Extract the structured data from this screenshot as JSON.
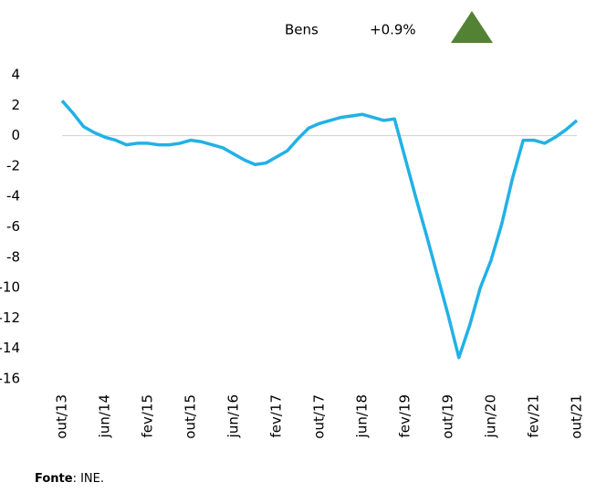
{
  "chart_data": {
    "type": "line",
    "legend_label": "Bens",
    "change": "+0.9%",
    "change_color": "#548235",
    "source_label": "Fonte",
    "source": ": INE.",
    "categories": [
      "out/13",
      null,
      null,
      null,
      "jun/14",
      null,
      null,
      null,
      "fev/15",
      null,
      null,
      null,
      "out/15",
      null,
      null,
      null,
      "jun/16",
      null,
      null,
      null,
      "fev/17",
      null,
      null,
      null,
      "out/17",
      null,
      null,
      null,
      "jun/18",
      null,
      null,
      null,
      "fev/19",
      null,
      null,
      null,
      "out/19",
      null,
      null,
      null,
      "jun/20",
      null,
      null,
      null,
      "fev/21",
      null,
      null,
      null,
      "out/21"
    ],
    "series": [
      {
        "name": "Bens",
        "color": "#21b1e6",
        "values": [
          2.3,
          1.5,
          0.6,
          0.2,
          -0.1,
          -0.3,
          -0.6,
          -0.5,
          -0.5,
          -0.6,
          -0.6,
          -0.5,
          -0.3,
          -0.4,
          -0.6,
          -0.8,
          -1.2,
          -1.6,
          -1.9,
          -1.8,
          -1.4,
          -1.0,
          -0.2,
          0.5,
          0.8,
          1.0,
          1.2,
          1.3,
          1.4,
          1.2,
          1.0,
          1.1,
          -1.5,
          -4.1,
          -6.6,
          -9.2,
          -11.8,
          -14.6,
          -12.5,
          -10.0,
          -8.2,
          -5.8,
          -2.8,
          -0.3,
          -0.3,
          -0.5,
          -0.1,
          0.4,
          1.0
        ]
      }
    ],
    "ylim": [
      -16,
      4
    ],
    "yticks": [
      -16,
      -14,
      -12,
      -10,
      -8,
      -6,
      -4,
      -2,
      0,
      2,
      4
    ],
    "zero_line": true
  }
}
